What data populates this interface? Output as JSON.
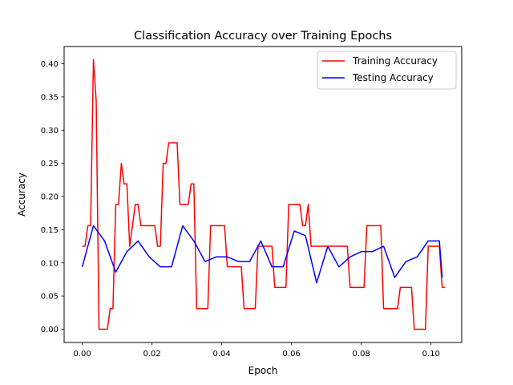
{
  "chart_data": {
    "type": "line",
    "title": "Classification Accuracy over Training Epochs",
    "xlabel": "Epoch",
    "ylabel": "Accuracy",
    "xlim": [
      -0.0052,
      0.1088
    ],
    "ylim": [
      -0.02,
      0.426
    ],
    "xticks": [
      0.0,
      0.02,
      0.04,
      0.06,
      0.08,
      0.1
    ],
    "xtick_labels": [
      "0.00",
      "0.02",
      "0.04",
      "0.06",
      "0.08",
      "0.10"
    ],
    "yticks": [
      0.0,
      0.05,
      0.1,
      0.15,
      0.2,
      0.25,
      0.3,
      0.35,
      0.4
    ],
    "ytick_labels": [
      "0.00",
      "0.05",
      "0.10",
      "0.15",
      "0.20",
      "0.25",
      "0.30",
      "0.35",
      "0.40"
    ],
    "grid": false,
    "legend_position": "upper right",
    "series": [
      {
        "name": "Training Accuracy",
        "color": "#ff0000",
        "x": [
          0.0,
          0.0008,
          0.0016,
          0.0024,
          0.0032,
          0.004,
          0.0048,
          0.0056,
          0.0064,
          0.0072,
          0.008,
          0.0088,
          0.0096,
          0.0104,
          0.0112,
          0.012,
          0.0128,
          0.0136,
          0.0144,
          0.0152,
          0.016,
          0.0168,
          0.0176,
          0.0184,
          0.0192,
          0.02,
          0.0208,
          0.0216,
          0.0224,
          0.0232,
          0.024,
          0.0248,
          0.0256,
          0.0264,
          0.0272,
          0.028,
          0.0288,
          0.0296,
          0.0304,
          0.0312,
          0.032,
          0.0328,
          0.0336,
          0.0344,
          0.0352,
          0.036,
          0.0368,
          0.0376,
          0.0384,
          0.0392,
          0.04,
          0.0408,
          0.0416,
          0.0424,
          0.0432,
          0.044,
          0.0448,
          0.0456,
          0.0464,
          0.0472,
          0.048,
          0.0488,
          0.0496,
          0.0504,
          0.0512,
          0.052,
          0.0528,
          0.0536,
          0.0544,
          0.0552,
          0.056,
          0.0568,
          0.0576,
          0.0584,
          0.0592,
          0.06,
          0.0608,
          0.0616,
          0.0624,
          0.0632,
          0.064,
          0.0648,
          0.0656,
          0.0664,
          0.0672,
          0.068,
          0.0688,
          0.0696,
          0.0704,
          0.0712,
          0.072,
          0.0728,
          0.0736,
          0.0744,
          0.0752,
          0.076,
          0.0768,
          0.0776,
          0.0784,
          0.0792,
          0.08,
          0.0808,
          0.0816,
          0.0824,
          0.0832,
          0.084,
          0.0848,
          0.0856,
          0.0864,
          0.0872,
          0.088,
          0.0888,
          0.0896,
          0.0904,
          0.0912,
          0.092,
          0.0928,
          0.0936,
          0.0944,
          0.0952,
          0.096,
          0.0968,
          0.0976,
          0.0984,
          0.0992,
          0.1,
          0.1008,
          0.1016,
          0.1024,
          0.1032,
          0.104
        ],
        "values": [
          0.125,
          0.125,
          0.156,
          0.156,
          0.406,
          0.344,
          0.0,
          0.0,
          0.0,
          0.0,
          0.031,
          0.031,
          0.188,
          0.188,
          0.25,
          0.219,
          0.219,
          0.125,
          0.156,
          0.188,
          0.188,
          0.156,
          0.156,
          0.156,
          0.156,
          0.156,
          0.156,
          0.125,
          0.125,
          0.25,
          0.25,
          0.281,
          0.281,
          0.281,
          0.281,
          0.188,
          0.188,
          0.188,
          0.188,
          0.219,
          0.219,
          0.031,
          0.031,
          0.031,
          0.031,
          0.031,
          0.156,
          0.156,
          0.156,
          0.156,
          0.156,
          0.156,
          0.094,
          0.094,
          0.094,
          0.094,
          0.094,
          0.094,
          0.031,
          0.031,
          0.031,
          0.031,
          0.031,
          0.125,
          0.125,
          0.125,
          0.125,
          0.125,
          0.125,
          0.063,
          0.063,
          0.063,
          0.063,
          0.063,
          0.188,
          0.188,
          0.188,
          0.188,
          0.188,
          0.156,
          0.156,
          0.188,
          0.125,
          0.125,
          0.125,
          0.125,
          0.125,
          0.125,
          0.125,
          0.125,
          0.125,
          0.125,
          0.125,
          0.125,
          0.125,
          0.125,
          0.063,
          0.063,
          0.063,
          0.063,
          0.063,
          0.063,
          0.156,
          0.156,
          0.156,
          0.156,
          0.156,
          0.156,
          0.031,
          0.031,
          0.031,
          0.031,
          0.031,
          0.031,
          0.063,
          0.063,
          0.063,
          0.063,
          0.063,
          0.0,
          0.0,
          0.0,
          0.0,
          0.0,
          0.125,
          0.125,
          0.125,
          0.125,
          0.125,
          0.063,
          0.063
        ]
      },
      {
        "name": "Testing Accuracy",
        "color": "#0000ff",
        "x": [
          0.0,
          0.0032,
          0.0064,
          0.0096,
          0.0128,
          0.016,
          0.0192,
          0.0224,
          0.0256,
          0.0288,
          0.032,
          0.0352,
          0.0384,
          0.0416,
          0.0448,
          0.048,
          0.0512,
          0.0544,
          0.0576,
          0.0608,
          0.064,
          0.0672,
          0.0704,
          0.0736,
          0.0768,
          0.08,
          0.0832,
          0.0864,
          0.0896,
          0.0928,
          0.096,
          0.0992,
          0.1024,
          0.1032
        ],
        "values": [
          0.094,
          0.156,
          0.133,
          0.086,
          0.117,
          0.133,
          0.109,
          0.094,
          0.094,
          0.156,
          0.133,
          0.102,
          0.109,
          0.109,
          0.102,
          0.102,
          0.133,
          0.094,
          0.094,
          0.148,
          0.141,
          0.07,
          0.125,
          0.094,
          0.109,
          0.117,
          0.117,
          0.125,
          0.078,
          0.102,
          0.109,
          0.133,
          0.133,
          0.078
        ]
      }
    ]
  }
}
